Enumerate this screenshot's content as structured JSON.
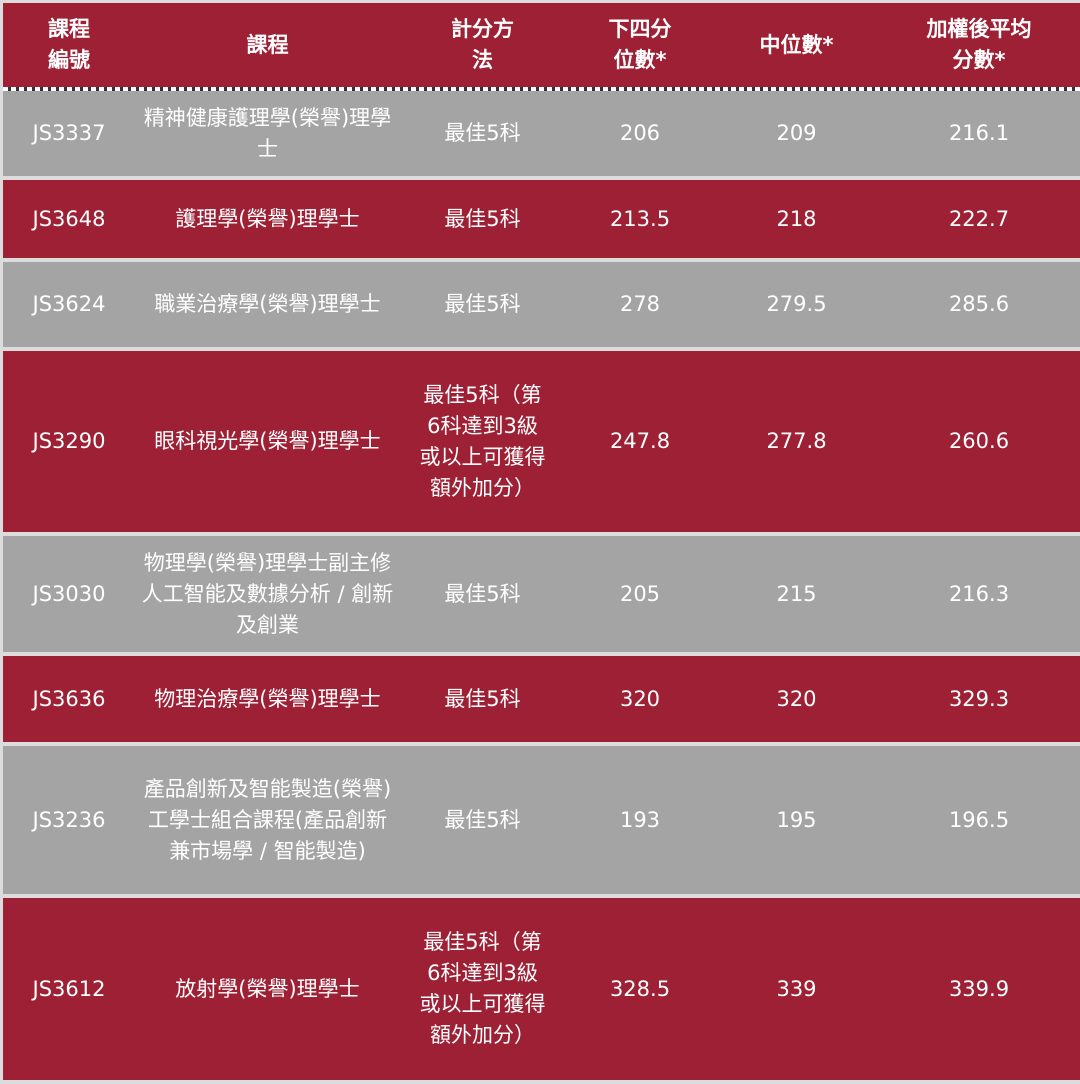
{
  "headers": [
    "課程\n編號",
    "課程",
    "計分方\n法",
    "下四分\n位數*",
    "中位數*",
    "加權後平均\n分數*"
  ],
  "rows": [
    {
      "code": "JS3337",
      "course": "精神健康護理學(榮譽)理學士",
      "method": "最佳5科",
      "lq": "206",
      "median": "209",
      "mean": "216.1"
    },
    {
      "code": "JS3648",
      "course": "護理學(榮譽)理學士",
      "method": "最佳5科",
      "lq": "213.5",
      "median": "218",
      "mean": "222.7"
    },
    {
      "code": "JS3624",
      "course": "職業治療學(榮譽)理學士",
      "method": "最佳5科",
      "lq": "278",
      "median": "279.5",
      "mean": "285.6"
    },
    {
      "code": "JS3290",
      "course": "眼科視光學(榮譽)理學士",
      "method": "最佳5科（第6科達到3級或以上可獲得額外加分）",
      "lq": "247.8",
      "median": "277.8",
      "mean": "260.6"
    },
    {
      "code": "JS3030",
      "course": "物理學(榮譽)理學士副主修人工智能及數據分析 / 創新及創業",
      "method": "最佳5科",
      "lq": "205",
      "median": "215",
      "mean": "216.3"
    },
    {
      "code": "JS3636",
      "course": "物理治療學(榮譽)理學士",
      "method": "最佳5科",
      "lq": "320",
      "median": "320",
      "mean": "329.3"
    },
    {
      "code": "JS3236",
      "course": "產品創新及智能製造(榮譽)工學士組合課程(產品創新兼市場學 / 智能製造)",
      "method": "最佳5科",
      "lq": "193",
      "median": "195",
      "mean": "196.5"
    },
    {
      "code": "JS3612",
      "course": "放射學(榮譽)理學士",
      "method": "最佳5科（第6科達到3級或以上可獲得額外加分）",
      "lq": "328.5",
      "median": "339",
      "mean": "339.9"
    }
  ],
  "colors": {
    "row_red": "#9e2035",
    "row_gray": "#a4a4a4"
  }
}
